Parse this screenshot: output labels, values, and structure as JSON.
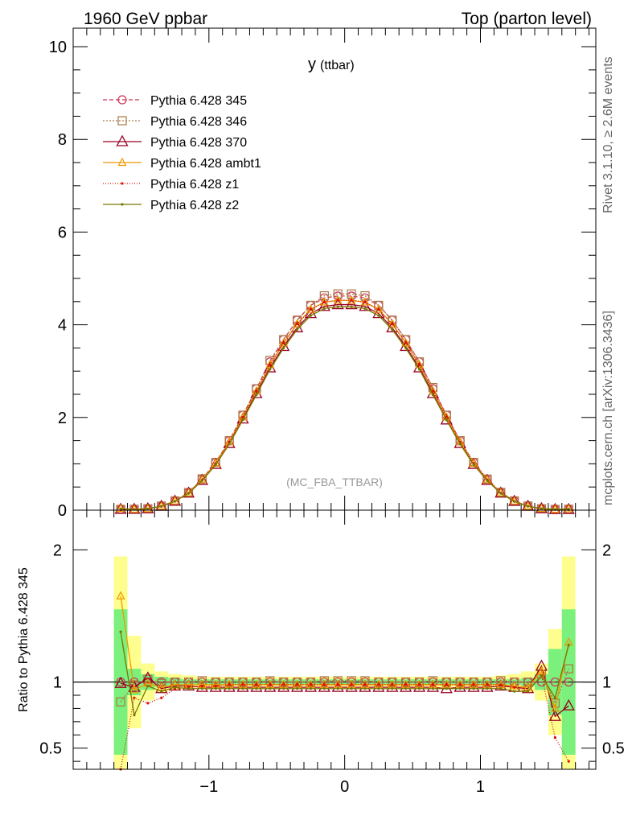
{
  "header": {
    "left": "1960 GeV ppbar",
    "right": "Top (parton level)"
  },
  "side_labels": {
    "rivet": "Rivet 3.1.10, ≥ 2.6M events",
    "mcplots": "mcplots.cern.ch [arXiv:1306.3436]"
  },
  "colors": {
    "band_inner": "#7cf07c",
    "band_outer": "#fefe8e",
    "reference_line": "#000000"
  },
  "chart_data": [
    {
      "type": "line",
      "title_main": "y",
      "title_sub": "(ttbar)",
      "watermark": "(MC_FBA_TTBAR)",
      "xlim": [
        -2.0,
        1.85
      ],
      "ylim": [
        0,
        10.4
      ],
      "yticks": [
        0,
        2,
        4,
        6,
        8,
        10
      ],
      "ytick_labels": [
        "0",
        "2",
        "4",
        "6",
        "8",
        "10"
      ],
      "x": [
        -1.65,
        -1.55,
        -1.45,
        -1.35,
        -1.25,
        -1.15,
        -1.05,
        -0.95,
        -0.85,
        -0.75,
        -0.65,
        -0.55,
        -0.45,
        -0.35,
        -0.25,
        -0.15,
        -0.05,
        0.05,
        0.15,
        0.25,
        0.35,
        0.45,
        0.55,
        0.65,
        0.75,
        0.85,
        0.95,
        1.05,
        1.15,
        1.25,
        1.35,
        1.45,
        1.55,
        1.65
      ],
      "reference": [
        0.02,
        0.02,
        0.03,
        0.09,
        0.2,
        0.38,
        0.67,
        1.03,
        1.5,
        2.05,
        2.62,
        3.2,
        3.68,
        4.1,
        4.42,
        4.58,
        4.62,
        4.62,
        4.58,
        4.42,
        4.1,
        3.68,
        3.2,
        2.62,
        2.05,
        1.5,
        1.03,
        0.67,
        0.38,
        0.2,
        0.09,
        0.03,
        0.02,
        0.02
      ],
      "series": [
        {
          "name": "Pythia 6.428 345",
          "color": "#cc3355",
          "dash": "5,3",
          "marker": "circle",
          "ratio": [
            1.0,
            1.0,
            1.0,
            1.0,
            1.0,
            1.0,
            1.0,
            1.0,
            1.0,
            1.0,
            1.0,
            1.0,
            1.0,
            1.0,
            1.0,
            1.0,
            1.0,
            1.0,
            1.0,
            1.0,
            1.0,
            1.0,
            1.0,
            1.0,
            1.0,
            1.0,
            1.0,
            1.0,
            1.0,
            1.0,
            1.0,
            1.0,
            1.0,
            1.0
          ]
        },
        {
          "name": "Pythia 6.428 346",
          "color": "#aa7744",
          "dash": "2,2",
          "marker": "square",
          "ratio": [
            0.85,
            0.98,
            1.02,
            0.99,
            1.0,
            1.0,
            1.01,
            1.0,
            1.0,
            1.0,
            1.0,
            1.01,
            1.0,
            1.0,
            1.0,
            1.01,
            1.01,
            1.01,
            1.01,
            1.0,
            1.0,
            1.0,
            1.0,
            1.01,
            1.0,
            1.0,
            1.0,
            1.0,
            1.01,
            1.0,
            1.0,
            1.06,
            0.84,
            1.1
          ]
        },
        {
          "name": "Pythia 6.428 370",
          "color": "#990022",
          "dash": "",
          "marker": "triangle",
          "ratio": [
            0.99,
            0.96,
            1.03,
            0.95,
            0.97,
            0.97,
            0.96,
            0.96,
            0.96,
            0.96,
            0.96,
            0.96,
            0.96,
            0.96,
            0.96,
            0.96,
            0.96,
            0.96,
            0.96,
            0.96,
            0.96,
            0.96,
            0.96,
            0.96,
            0.95,
            0.96,
            0.96,
            0.96,
            0.97,
            0.96,
            0.95,
            1.12,
            0.74,
            0.82
          ]
        },
        {
          "name": "Pythia 6.428 ambt1",
          "color": "#ee9900",
          "dash": "",
          "marker": "triangle-small",
          "ratio": [
            1.65,
            0.94,
            0.99,
            0.96,
            0.98,
            0.98,
            0.98,
            0.98,
            0.98,
            0.98,
            0.98,
            0.98,
            0.98,
            0.98,
            0.98,
            0.98,
            0.98,
            0.98,
            0.98,
            0.98,
            0.98,
            0.98,
            0.98,
            0.98,
            0.98,
            0.98,
            0.98,
            0.98,
            0.98,
            0.97,
            0.96,
            1.08,
            0.8,
            1.3
          ]
        },
        {
          "name": "Pythia 6.428 z1",
          "color": "#dd1100",
          "dash": "1,2",
          "marker": "dot",
          "ratio": [
            0.3,
            0.88,
            0.84,
            0.88,
            0.95,
            0.96,
            0.97,
            0.97,
            0.98,
            0.98,
            0.98,
            0.98,
            0.98,
            0.98,
            0.98,
            0.98,
            0.98,
            0.98,
            0.98,
            0.98,
            0.98,
            0.98,
            0.98,
            0.98,
            0.98,
            0.98,
            0.98,
            0.98,
            0.98,
            0.96,
            0.93,
            1.05,
            0.58,
            0.4
          ]
        },
        {
          "name": "Pythia 6.428 z2",
          "color": "#777700",
          "dash": "",
          "marker": "dot",
          "ratio": [
            1.38,
            0.75,
            0.97,
            0.93,
            0.96,
            0.95,
            0.95,
            0.95,
            0.95,
            0.95,
            0.95,
            0.95,
            0.95,
            0.95,
            0.95,
            0.95,
            0.95,
            0.95,
            0.95,
            0.95,
            0.95,
            0.95,
            0.95,
            0.95,
            0.95,
            0.95,
            0.95,
            0.95,
            0.95,
            0.93,
            0.93,
            1.05,
            0.88,
            1.28
          ]
        }
      ]
    },
    {
      "type": "line",
      "ylabel": "Ratio to Pythia 6.428 345",
      "xlim": [
        -2.0,
        1.85
      ],
      "ylim": [
        0.34,
        2.3
      ],
      "yticks": [
        0.5,
        1,
        2
      ],
      "ytick_labels": [
        "0.5",
        "1",
        "2"
      ],
      "xticks": [
        -1,
        0,
        1
      ],
      "xtick_labels": [
        "−1",
        "0",
        "1"
      ],
      "band_inner_halfwidth": [
        0.55,
        0.1,
        0.06,
        0.04,
        0.03,
        0.02,
        0.02,
        0.02,
        0.02,
        0.02,
        0.02,
        0.02,
        0.02,
        0.02,
        0.02,
        0.02,
        0.02,
        0.02,
        0.02,
        0.02,
        0.02,
        0.02,
        0.02,
        0.02,
        0.02,
        0.02,
        0.02,
        0.02,
        0.02,
        0.02,
        0.03,
        0.06,
        0.25,
        0.55
      ],
      "band_outer_halfwidth": [
        0.95,
        0.35,
        0.14,
        0.08,
        0.06,
        0.05,
        0.04,
        0.04,
        0.04,
        0.04,
        0.04,
        0.04,
        0.04,
        0.04,
        0.04,
        0.04,
        0.04,
        0.04,
        0.04,
        0.04,
        0.04,
        0.04,
        0.04,
        0.04,
        0.04,
        0.04,
        0.04,
        0.04,
        0.05,
        0.06,
        0.08,
        0.14,
        0.4,
        0.95
      ]
    }
  ]
}
